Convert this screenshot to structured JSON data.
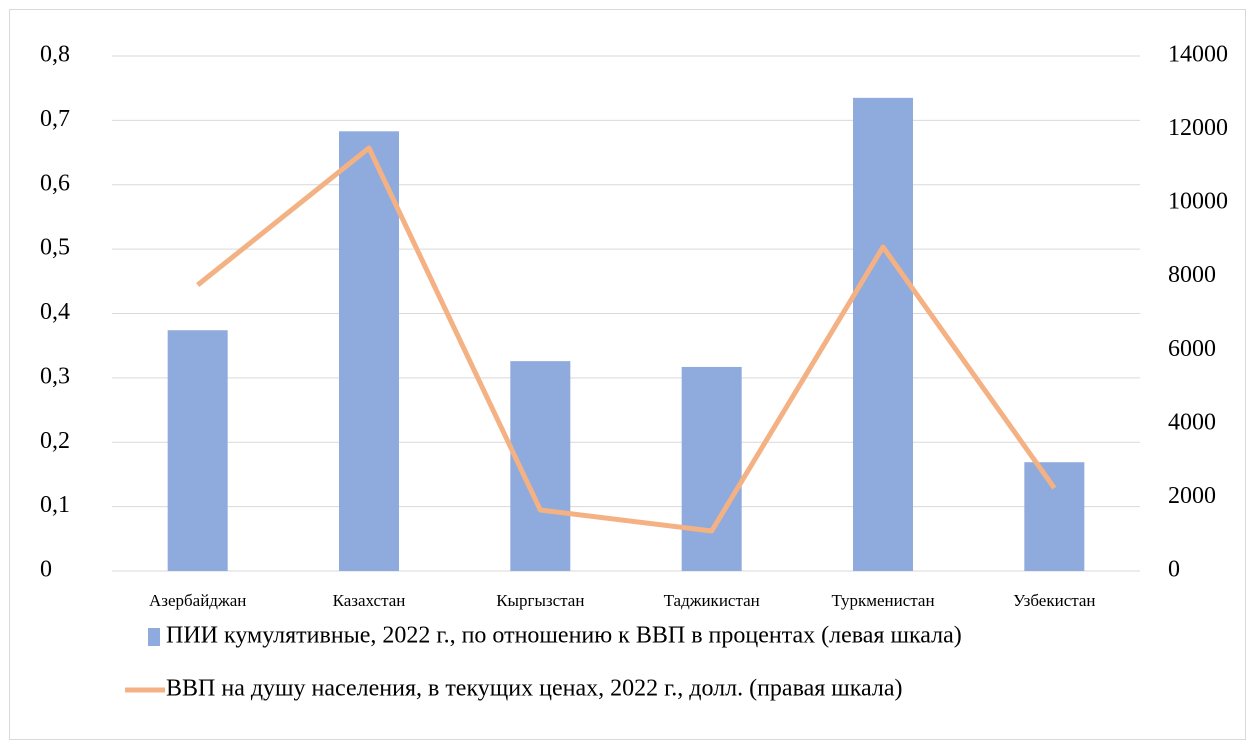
{
  "chart_data": {
    "type": "bar+line",
    "categories": [
      "Азербайджан",
      "Казахстан",
      "Кыргызстан",
      "Таджикистан",
      "Туркменистан",
      "Узбекистан"
    ],
    "series": [
      {
        "name": "ПИИ кумулятивные, 2022 г., по отношению к ВВП в процентах (левая шкала)",
        "type": "bar",
        "color": "#8faadc",
        "values": [
          0.374,
          0.683,
          0.326,
          0.317,
          0.735,
          0.169
        ]
      },
      {
        "name": "ВВП на душу населения, в текущих ценах, 2022 г., долл. (правая шкала)",
        "type": "line",
        "axis": "y2",
        "color": "#f4b183",
        "values": [
          7775,
          11499,
          1658,
          1087,
          8808,
          2256
        ]
      }
    ],
    "ylim": [
      0,
      0.8
    ],
    "yticks": [
      0,
      {
        "value": 0.1,
        "label": "0,1"
      },
      {
        "value": 0.2,
        "label": "0,2"
      },
      {
        "value": 0.3,
        "label": "0,3"
      },
      {
        "value": 0.4,
        "label": "0,4"
      },
      {
        "value": 0.5,
        "label": "0,5"
      },
      {
        "value": 0.6,
        "label": "0,6"
      },
      {
        "value": 0.7,
        "label": "0,7"
      },
      {
        "value": 0.8,
        "label": "0,8"
      }
    ],
    "y2lim": [
      0,
      14000
    ],
    "y2ticks": [
      0,
      2000,
      4000,
      6000,
      8000,
      10000,
      12000,
      14000
    ],
    "grid": true,
    "legend": "bottom"
  }
}
